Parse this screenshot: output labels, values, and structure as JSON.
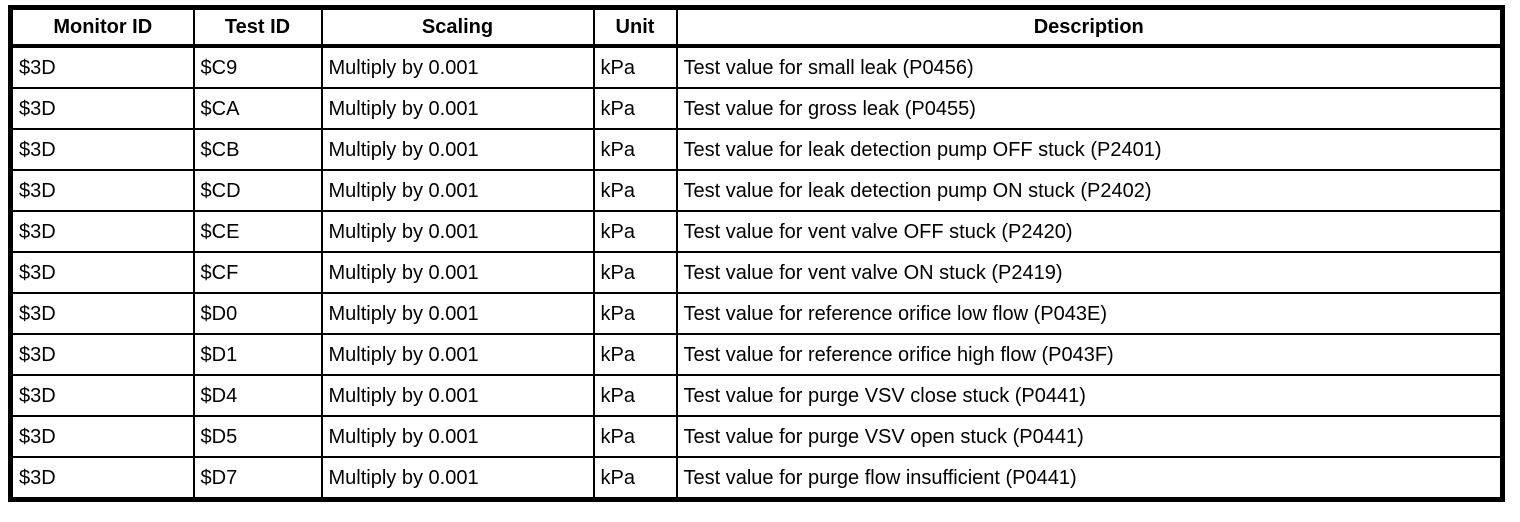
{
  "colors": {
    "border": "#000000",
    "background": "#ffffff",
    "text": "#000000"
  },
  "table": {
    "columns": [
      "Monitor ID",
      "Test ID",
      "Scaling",
      "Unit",
      "Description"
    ],
    "rows": [
      [
        "$3D",
        "$C9",
        "Multiply by 0.001",
        "kPa",
        "Test value for small leak (P0456)"
      ],
      [
        "$3D",
        "$CA",
        "Multiply by 0.001",
        "kPa",
        "Test value for gross leak (P0455)"
      ],
      [
        "$3D",
        "$CB",
        "Multiply by 0.001",
        "kPa",
        "Test value for leak detection pump OFF stuck (P2401)"
      ],
      [
        "$3D",
        "$CD",
        "Multiply by 0.001",
        "kPa",
        "Test value for leak detection pump ON stuck (P2402)"
      ],
      [
        "$3D",
        "$CE",
        "Multiply by 0.001",
        "kPa",
        "Test value for vent valve OFF stuck (P2420)"
      ],
      [
        "$3D",
        "$CF",
        "Multiply by 0.001",
        "kPa",
        "Test value for vent valve ON stuck (P2419)"
      ],
      [
        "$3D",
        "$D0",
        "Multiply by 0.001",
        "kPa",
        "Test value for reference orifice low flow (P043E)"
      ],
      [
        "$3D",
        "$D1",
        "Multiply by 0.001",
        "kPa",
        "Test value for reference orifice high flow (P043F)"
      ],
      [
        "$3D",
        "$D4",
        "Multiply by 0.001",
        "kPa",
        "Test value for purge VSV close stuck (P0441)"
      ],
      [
        "$3D",
        "$D5",
        "Multiply by 0.001",
        "kPa",
        "Test value for purge VSV open stuck (P0441)"
      ],
      [
        "$3D",
        "$D7",
        "Multiply by 0.001",
        "kPa",
        "Test value for purge flow insufficient (P0441)"
      ]
    ]
  }
}
